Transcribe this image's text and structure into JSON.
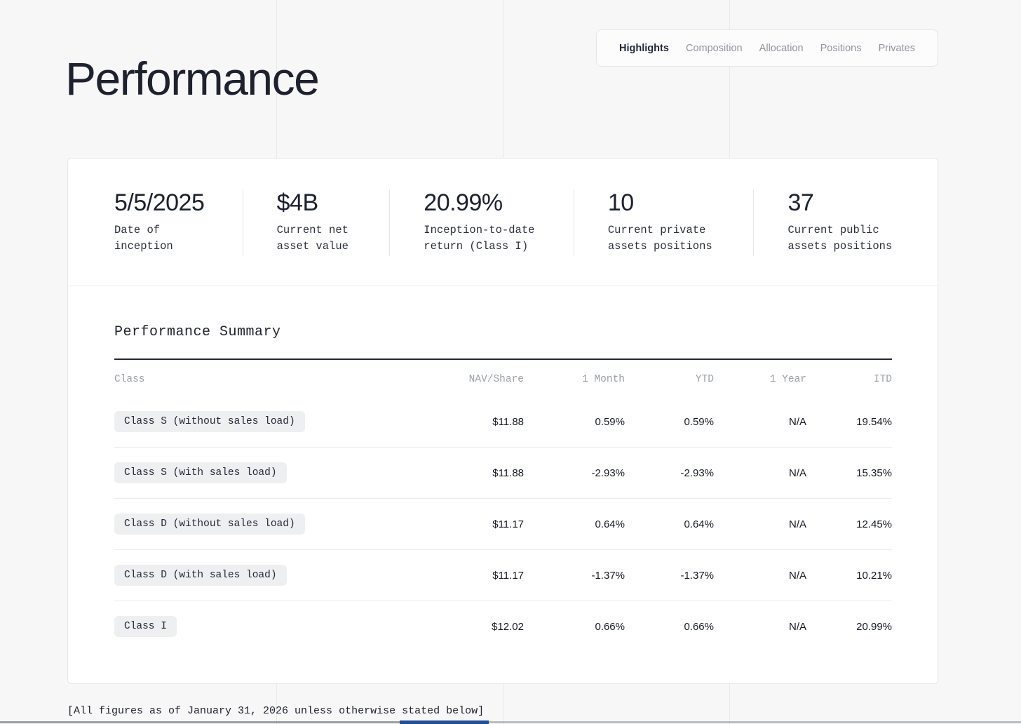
{
  "page": {
    "title": "Performance",
    "footnote": "[All figures as of January 31, 2026 unless otherwise stated below]"
  },
  "nav": {
    "tabs": [
      {
        "label": "Highlights",
        "active": true
      },
      {
        "label": "Composition",
        "active": false
      },
      {
        "label": "Allocation",
        "active": false
      },
      {
        "label": "Positions",
        "active": false
      },
      {
        "label": "Privates",
        "active": false
      }
    ]
  },
  "stats": [
    {
      "value": "5/5/2025",
      "label": "Date of\ninception"
    },
    {
      "value": "$4B",
      "label": "Current net\nasset value"
    },
    {
      "value": "20.99%",
      "label": "Inception-to-date\nreturn (Class I)"
    },
    {
      "value": "10",
      "label": "Current private\nassets positions"
    },
    {
      "value": "37",
      "label": "Current public\nassets positions"
    }
  ],
  "summary": {
    "title": "Performance Summary",
    "columns": [
      "Class",
      "NAV/Share",
      "1 Month",
      "YTD",
      "1 Year",
      "ITD"
    ],
    "rows": [
      {
        "class": "Class S (without sales load)",
        "nav_share": "$11.88",
        "one_month": "0.59%",
        "ytd": "0.59%",
        "one_year": "N/A",
        "itd": "19.54%"
      },
      {
        "class": "Class S (with sales load)",
        "nav_share": "$11.88",
        "one_month": "-2.93%",
        "ytd": "-2.93%",
        "one_year": "N/A",
        "itd": "15.35%"
      },
      {
        "class": "Class D (without sales load)",
        "nav_share": "$11.17",
        "one_month": "0.64%",
        "ytd": "0.64%",
        "one_year": "N/A",
        "itd": "12.45%"
      },
      {
        "class": "Class D (with sales load)",
        "nav_share": "$11.17",
        "one_month": "-1.37%",
        "ytd": "-1.37%",
        "one_year": "N/A",
        "itd": "10.21%"
      },
      {
        "class": "Class I",
        "nav_share": "$12.02",
        "one_month": "0.66%",
        "ytd": "0.66%",
        "one_year": "N/A",
        "itd": "20.99%"
      }
    ]
  },
  "colors": {
    "accent_blue": "#1d50a5",
    "text_dark": "#1e222e",
    "text_gray": "#9ba1a9",
    "badge_bg": "#edeff0",
    "card_bg": "#ffffff",
    "page_bg": "#f7f7f8"
  }
}
